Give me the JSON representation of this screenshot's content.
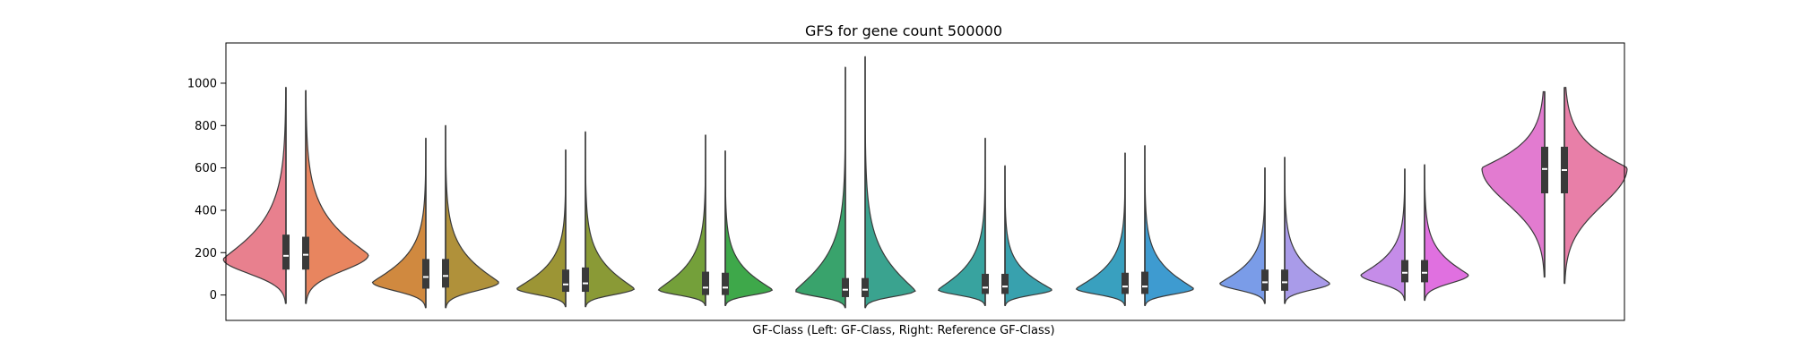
{
  "chart_data": {
    "type": "violin",
    "title": "GFS for gene count 500000",
    "xlabel": "GF-Class (Left: GF-Class, Right: Reference GF-Class)",
    "ylabel": "",
    "ylim": [
      -120,
      1190
    ],
    "yticks": [
      0,
      200,
      400,
      600,
      800,
      1000
    ],
    "grid": false,
    "groups": [
      {
        "left": {
          "color": "#e8808e",
          "min": -40,
          "max": 980,
          "q1": 120,
          "median": 185,
          "q3": 285,
          "mode": 170,
          "mode_peak": 1.0,
          "right_tail": 1.0
        },
        "right": {
          "color": "#e8855f",
          "min": -40,
          "max": 965,
          "q1": 120,
          "median": 190,
          "q3": 275,
          "mode": 190,
          "mode_peak": 1.0,
          "right_tail": 1.0
        }
      },
      {
        "left": {
          "color": "#d0893f",
          "min": -60,
          "max": 740,
          "q1": 30,
          "median": 85,
          "q3": 170,
          "mode": 60,
          "mode_peak": 0.85,
          "right_tail": 1.2
        },
        "right": {
          "color": "#b0913a",
          "min": -60,
          "max": 800,
          "q1": 35,
          "median": 90,
          "q3": 170,
          "mode": 60,
          "mode_peak": 0.85,
          "right_tail": 1.2
        }
      },
      {
        "left": {
          "color": "#9c9535",
          "min": -55,
          "max": 685,
          "q1": 15,
          "median": 50,
          "q3": 120,
          "mode": 30,
          "mode_peak": 0.78,
          "right_tail": 1.3
        },
        "right": {
          "color": "#8a9a36",
          "min": -55,
          "max": 770,
          "q1": 15,
          "median": 55,
          "q3": 130,
          "mode": 30,
          "mode_peak": 0.78,
          "right_tail": 1.3
        }
      },
      {
        "left": {
          "color": "#74a03a",
          "min": -50,
          "max": 755,
          "q1": 0,
          "median": 35,
          "q3": 110,
          "mode": 25,
          "mode_peak": 0.75,
          "right_tail": 1.3
        },
        "right": {
          "color": "#3ea84a",
          "min": -50,
          "max": 680,
          "q1": 0,
          "median": 35,
          "q3": 105,
          "mode": 25,
          "mode_peak": 0.75,
          "right_tail": 1.3
        }
      },
      {
        "left": {
          "color": "#39a36c",
          "min": -60,
          "max": 1075,
          "q1": -10,
          "median": 25,
          "q3": 80,
          "mode": 20,
          "mode_peak": 0.8,
          "right_tail": 1.4
        },
        "right": {
          "color": "#3aa38f",
          "min": -60,
          "max": 1125,
          "q1": -10,
          "median": 25,
          "q3": 80,
          "mode": 20,
          "mode_peak": 0.8,
          "right_tail": 1.4
        }
      },
      {
        "left": {
          "color": "#38a39f",
          "min": -50,
          "max": 740,
          "q1": 5,
          "median": 35,
          "q3": 100,
          "mode": 25,
          "mode_peak": 0.75,
          "right_tail": 1.3
        },
        "right": {
          "color": "#38a1ae",
          "min": -50,
          "max": 610,
          "q1": 5,
          "median": 40,
          "q3": 100,
          "mode": 25,
          "mode_peak": 0.75,
          "right_tail": 1.3
        }
      },
      {
        "left": {
          "color": "#39a0bf",
          "min": -50,
          "max": 670,
          "q1": 5,
          "median": 40,
          "q3": 105,
          "mode": 30,
          "mode_peak": 0.78,
          "right_tail": 1.3
        },
        "right": {
          "color": "#3e9bd0",
          "min": -50,
          "max": 705,
          "q1": 5,
          "median": 40,
          "q3": 110,
          "mode": 30,
          "mode_peak": 0.78,
          "right_tail": 1.3
        }
      },
      {
        "left": {
          "color": "#7a9ce8",
          "min": -40,
          "max": 600,
          "q1": 20,
          "median": 60,
          "q3": 120,
          "mode": 55,
          "mode_peak": 0.72,
          "right_tail": 1.2
        },
        "right": {
          "color": "#a99be9",
          "min": -40,
          "max": 650,
          "q1": 20,
          "median": 60,
          "q3": 120,
          "mode": 55,
          "mode_peak": 0.72,
          "right_tail": 1.2
        }
      },
      {
        "left": {
          "color": "#c58ce8",
          "min": -25,
          "max": 595,
          "q1": 60,
          "median": 105,
          "q3": 165,
          "mode": 95,
          "mode_peak": 0.7,
          "right_tail": 1.1
        },
        "right": {
          "color": "#e070e0",
          "min": -25,
          "max": 615,
          "q1": 60,
          "median": 105,
          "q3": 165,
          "mode": 95,
          "mode_peak": 0.7,
          "right_tail": 1.1
        }
      },
      {
        "left": {
          "color": "#e27bd0",
          "min": 85,
          "max": 960,
          "q1": 480,
          "median": 595,
          "q3": 700,
          "mode": 600,
          "mode_peak": 1.0,
          "right_tail": 0.7
        },
        "right": {
          "color": "#e87fa8",
          "min": 55,
          "max": 980,
          "q1": 480,
          "median": 590,
          "q3": 700,
          "mode": 600,
          "mode_peak": 1.0,
          "right_tail": 0.7
        }
      }
    ]
  }
}
